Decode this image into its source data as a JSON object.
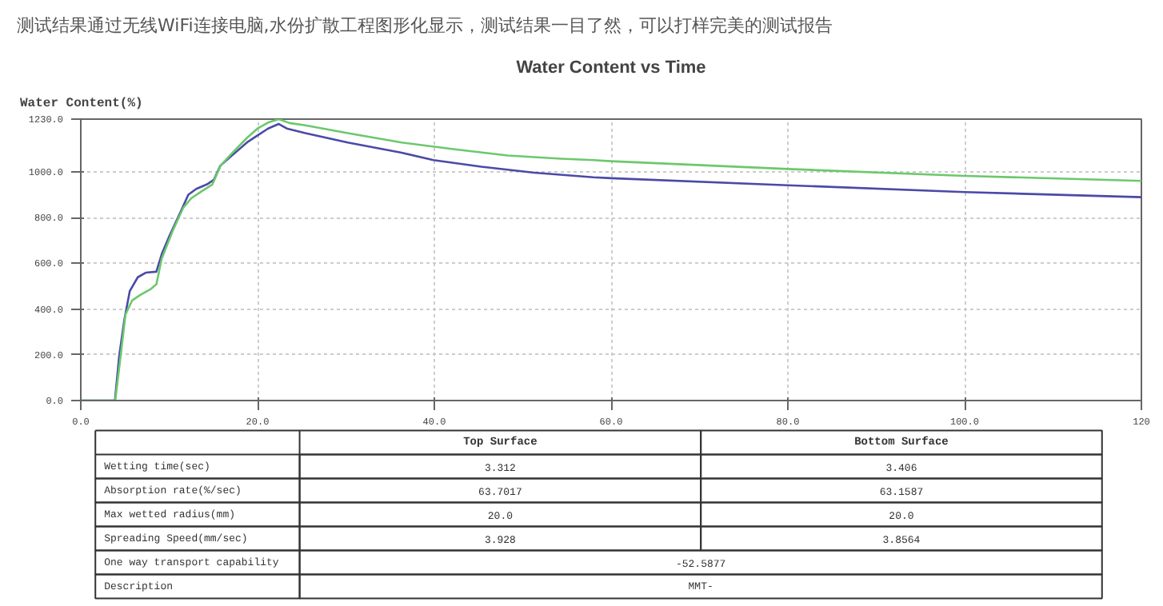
{
  "chart_data": [
    {
      "type": "line",
      "title": "Water Content vs Time",
      "ylabel": "Water Content(%)",
      "annotations": [
        "测试结果通过无线WiFi连接电脑,水份扩散工程图形化显示，测试结果一目了然，可以打样完美的测试报告"
      ],
      "xlim": [
        0,
        120
      ],
      "xticks": [
        {
          "value": 0,
          "label": "0.0"
        },
        {
          "value": 20,
          "label": "20.0"
        },
        {
          "value": 40,
          "label": "40.0"
        },
        {
          "value": 60,
          "label": "60.0"
        },
        {
          "value": 80,
          "label": "80.0"
        },
        {
          "value": 100,
          "label": "100.0"
        },
        {
          "value": 120,
          "label": "120"
        }
      ],
      "ylim": [
        0,
        1230
      ],
      "yticks": [
        {
          "value": 0,
          "label": "0.0"
        },
        {
          "value": 200,
          "label": "200.0"
        },
        {
          "value": 400,
          "label": "400.0"
        },
        {
          "value": 600,
          "label": "600.0"
        },
        {
          "value": 800,
          "label": "800.0"
        },
        {
          "value": 1000,
          "label": "1000.0"
        },
        {
          "value": 1230,
          "label": "1230.0"
        }
      ],
      "grid": true,
      "line_style": "solid",
      "marker": "none",
      "series": [
        {
          "color": "#4a4aa8",
          "x": [
            0,
            3.86,
            4.34,
            4.94,
            5.54,
            6.45,
            7.35,
            8.55,
            9.16,
            10.06,
            11.27,
            12.17,
            13.07,
            14.28,
            15.06,
            15.78,
            16.99,
            18.8,
            20,
            21.2,
            22.4,
            23.3,
            25.4,
            30.2,
            36.3,
            39.9,
            45.3,
            51.3,
            58,
            60,
            80,
            100,
            120
          ],
          "values": [
            0,
            0,
            193,
            356,
            478,
            539,
            559,
            563,
            640,
            722,
            823,
            900,
            925,
            945,
            965,
            1026,
            1067,
            1128,
            1159,
            1189,
            1209,
            1189,
            1169,
            1128,
            1083,
            1051,
            1022,
            996,
            976,
            972,
            941,
            911,
            889
          ]
        },
        {
          "color": "#6cc86c",
          "x": [
            0,
            3.9,
            4.5,
            5.06,
            5.8,
            6.7,
            7.95,
            8.55,
            9.16,
            10.4,
            11.6,
            12.5,
            13.7,
            14.9,
            15.8,
            17,
            18.8,
            20,
            21.2,
            22.4,
            23.6,
            25.4,
            30.2,
            36.3,
            42.3,
            48.3,
            54.3,
            58,
            60,
            80,
            100,
            120
          ],
          "values": [
            0,
            0,
            193,
            376,
            437,
            461,
            488,
            508,
            620,
            742,
            843,
            884,
            915,
            945,
            1026,
            1077,
            1148,
            1189,
            1215,
            1230,
            1213,
            1203,
            1169,
            1128,
            1098,
            1071,
            1057,
            1051,
            1046,
            1012,
            982,
            960
          ]
        }
      ]
    },
    {
      "type": "other",
      "categories": [
        "Top Surface",
        "Bottom Surface"
      ],
      "y_categories": [
        "Wetting time(sec)",
        "Absorption rate(%/sec)",
        "Max wetted radius(mm)",
        "Spreading Speed(mm/sec)",
        "One way transport capability",
        "Description"
      ],
      "cell_labels": [
        [
          "3.312",
          "3.406"
        ],
        [
          "63.7017",
          "63.1587"
        ],
        [
          "20.0",
          "20.0"
        ],
        [
          "3.928",
          "3.8564"
        ],
        [
          "-52.5877"
        ],
        [
          "MMT-"
        ]
      ]
    }
  ]
}
